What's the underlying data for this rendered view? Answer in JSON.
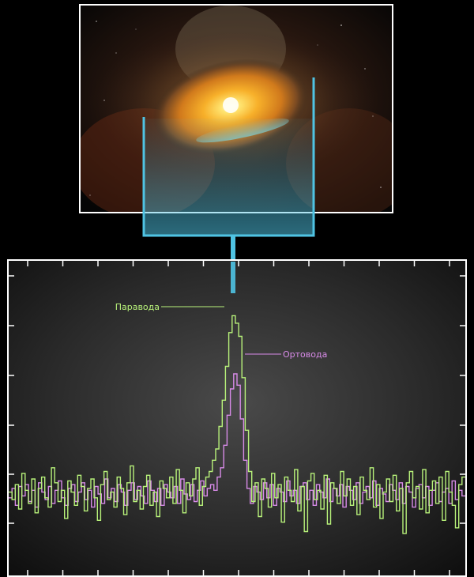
{
  "chart_data": {
    "type": "line",
    "title": "",
    "xlabel": "",
    "ylabel": "",
    "grid": false,
    "legend": "inline annotations",
    "series": [
      {
        "name": "Паравода",
        "color": "#b8f27a",
        "values": [
          0.1,
          -0.3,
          0.5,
          -0.8,
          1.1,
          0.2,
          -0.5,
          0.8,
          -1.0,
          0.3,
          0.9,
          -0.2,
          -0.7,
          1.4,
          0.6,
          -0.4,
          0.2,
          -1.3,
          0.7,
          0.1,
          -0.6,
          1.0,
          0.4,
          -0.9,
          0.3,
          0.8,
          -0.2,
          -1.4,
          0.5,
          1.2,
          -0.3,
          0.1,
          -0.7,
          0.9,
          0.3,
          -1.1,
          0.6,
          1.5,
          -0.4,
          0.2,
          -0.8,
          0.4,
          1.0,
          -0.6,
          0.1,
          -1.2,
          0.7,
          0.3,
          -0.2,
          0.9,
          -0.5,
          1.3,
          0.2,
          -1.0,
          0.6,
          -0.1,
          0.8,
          1.4,
          -0.6,
          0.4,
          0.9,
          1.2,
          1.8,
          2.4,
          3.6,
          5.0,
          6.8,
          8.6,
          9.5,
          9.1,
          8.4,
          6.2,
          3.4,
          1.2,
          -0.4,
          0.6,
          -1.2,
          0.8,
          0.3,
          -0.7,
          1.1,
          -0.2,
          0.5,
          -1.5,
          0.9,
          0.2,
          -0.4,
          1.3,
          -0.9,
          0.4,
          -2.0,
          0.7,
          1.1,
          -0.3,
          0.2,
          -0.8,
          1.0,
          -1.6,
          0.6,
          0.3,
          -0.5,
          1.2,
          -0.1,
          0.8,
          -0.6,
          0.4,
          -1.1,
          0.9,
          0.2,
          -0.3,
          1.4,
          -0.7,
          0.5,
          -1.3,
          0.1,
          0.8,
          -0.4,
          1.0,
          -0.9,
          0.3,
          -2.1,
          0.6,
          1.2,
          -0.2,
          0.4,
          -0.8,
          1.3,
          -1.0,
          0.2,
          0.7,
          -0.5,
          0.9,
          -1.4,
          1.2,
          0.1,
          -0.6,
          -1.8,
          0.5,
          0.9
        ]
      },
      {
        "name": "Ортовода",
        "color": "#d88be8",
        "values": [
          -0.2,
          0.3,
          -0.6,
          0.4,
          -0.1,
          0.5,
          -0.4,
          0.2,
          -0.7,
          0.6,
          0.1,
          -0.3,
          0.4,
          -0.5,
          0.2,
          0.7,
          -0.2,
          -0.6,
          0.3,
          0.5,
          -0.4,
          0.1,
          0.6,
          -0.3,
          0.2,
          -0.7,
          0.4,
          0.0,
          -0.5,
          0.8,
          -0.2,
          0.3,
          -0.4,
          0.5,
          0.1,
          -0.6,
          0.2,
          0.6,
          -0.3,
          0.4,
          -0.1,
          -0.5,
          0.7,
          0.2,
          -0.4,
          0.3,
          -0.6,
          0.5,
          0.1,
          -0.2,
          0.4,
          -0.5,
          0.8,
          0.0,
          -0.3,
          0.5,
          -0.4,
          0.2,
          0.7,
          -0.1,
          0.3,
          0.5,
          0.2,
          0.9,
          1.4,
          2.6,
          4.2,
          5.6,
          6.4,
          5.8,
          4.0,
          1.8,
          0.3,
          -0.5,
          0.4,
          0.1,
          -0.3,
          0.6,
          -0.2,
          0.5,
          -0.6,
          0.3,
          0.1,
          -0.4,
          0.7,
          -0.1,
          0.2,
          -0.5,
          0.4,
          0.6,
          -0.3,
          0.2,
          -0.6,
          0.5,
          0.1,
          -0.2,
          0.8,
          -0.4,
          0.3,
          -0.1,
          0.5,
          -0.7,
          0.4,
          0.2,
          -0.3,
          0.6,
          -0.5,
          0.1,
          0.4,
          -0.2,
          0.7,
          -0.6,
          0.3,
          0.0,
          -0.4,
          0.5,
          0.2,
          -0.3,
          0.6,
          -0.5,
          0.4,
          0.1,
          -0.7,
          0.3,
          0.5,
          -0.2,
          0.4,
          -0.6,
          0.2,
          0.6,
          -0.4,
          0.1,
          0.3,
          -0.5,
          0.7,
          -0.3,
          0.2,
          -0.1
        ]
      }
    ],
    "ylim": [
      -4,
      12
    ]
  },
  "annotations": {
    "para_label": "Паравода",
    "ortho_label": "Ортовода"
  },
  "colors": {
    "bucket": "#4fc3e3",
    "frame": "#ffffff"
  }
}
